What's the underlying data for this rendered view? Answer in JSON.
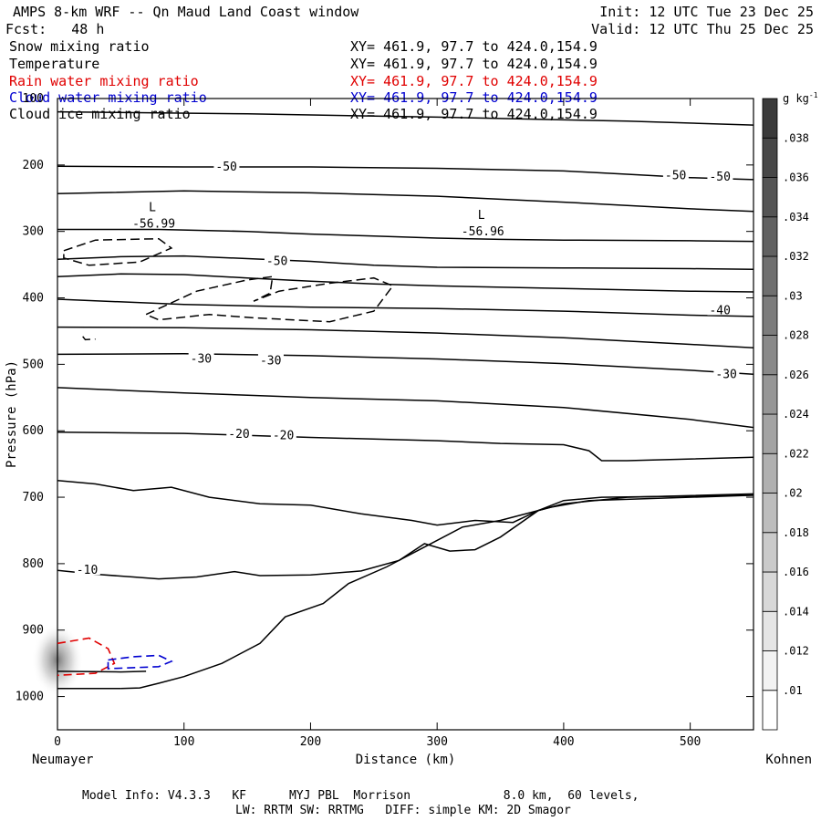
{
  "header": {
    "title": "AMPS 8-km WRF -- Qn Maud Land Coast window",
    "forecast": "Fcst:   48 h",
    "init": "Init: 12 UTC Tue 23 Dec 25",
    "valid": "Valid: 12 UTC Thu 25 Dec 25"
  },
  "fields": [
    {
      "name": "Snow mixing ratio",
      "xy": "XY= 461.9, 97.7 to 424.0,154.9",
      "color": "#000000"
    },
    {
      "name": "Temperature",
      "xy": "XY= 461.9, 97.7 to 424.0,154.9",
      "color": "#000000"
    },
    {
      "name": "Rain water mixing ratio",
      "xy": "XY= 461.9, 97.7 to 424.0,154.9",
      "color": "#e00000"
    },
    {
      "name": "Cloud water mixing ratio",
      "xy": "XY= 461.9, 97.7 to 424.0,154.9",
      "color": "#0000d0"
    },
    {
      "name": "Cloud ice mixing ratio",
      "xy": "XY= 461.9, 97.7 to 424.0,154.9",
      "color": "#000000"
    }
  ],
  "footer": {
    "line1": "Model Info: V4.3.3   KF      MYJ PBL  Morrison             8.0 km,  60 levels,",
    "line2": "LW: RRTM SW: RRTMG   DIFF: simple KM: 2D Smagor"
  },
  "chart_data": {
    "type": "contour",
    "xlabel": "Distance (km)",
    "ylabel": "Pressure (hPa)",
    "x_left_label": "Neumayer",
    "x_right_label": "Kohnen",
    "xlim": [
      0,
      550
    ],
    "ylim": [
      1050,
      100
    ],
    "xticks": [
      0,
      100,
      200,
      300,
      400,
      500
    ],
    "yticks": [
      100,
      200,
      300,
      400,
      500,
      600,
      700,
      800,
      900,
      1000
    ],
    "colorbar": {
      "unit": "g kg",
      "unit_exp": "-1",
      "levels": [
        ".01",
        ".012",
        ".014",
        ".016",
        ".018",
        ".02",
        ".022",
        ".024",
        ".026",
        ".028",
        ".03",
        ".032",
        ".034",
        ".036",
        ".038"
      ]
    },
    "temperature_labels": [
      "-50",
      "-50",
      "-50",
      "-50",
      "-40",
      "-30",
      "-30",
      "-30",
      "-20",
      "-20",
      "-10"
    ],
    "lows": [
      {
        "symbol": "L",
        "value": "-56.99"
      },
      {
        "symbol": "L",
        "value": "-56.96"
      }
    ],
    "temperature_contours": [
      {
        "points": [
          [
            0,
            120
          ],
          [
            150,
            123
          ],
          [
            300,
            128
          ],
          [
            450,
            134
          ],
          [
            550,
            140
          ]
        ]
      },
      {
        "points": [
          [
            0,
            202
          ],
          [
            100,
            203
          ],
          [
            200,
            203
          ],
          [
            300,
            205
          ],
          [
            400,
            209
          ],
          [
            450,
            214
          ],
          [
            500,
            219
          ],
          [
            550,
            222
          ]
        ]
      },
      {
        "points": [
          [
            0,
            243
          ],
          [
            100,
            239
          ],
          [
            200,
            242
          ],
          [
            300,
            247
          ],
          [
            400,
            256
          ],
          [
            500,
            266
          ],
          [
            550,
            270
          ]
        ]
      },
      {
        "points": [
          [
            0,
            297
          ],
          [
            80,
            297
          ],
          [
            150,
            300
          ],
          [
            200,
            304
          ],
          [
            250,
            307
          ],
          [
            300,
            310
          ],
          [
            350,
            312
          ],
          [
            400,
            313
          ],
          [
            500,
            314
          ],
          [
            550,
            315
          ]
        ]
      },
      {
        "points": [
          [
            0,
            342
          ],
          [
            50,
            338
          ],
          [
            100,
            337
          ],
          [
            150,
            341
          ],
          [
            200,
            345
          ],
          [
            250,
            351
          ],
          [
            300,
            354
          ],
          [
            400,
            355
          ],
          [
            500,
            356
          ],
          [
            550,
            357
          ]
        ]
      },
      {
        "points": [
          [
            0,
            368
          ],
          [
            50,
            364
          ],
          [
            100,
            365
          ],
          [
            150,
            370
          ],
          [
            200,
            375
          ],
          [
            250,
            379
          ],
          [
            300,
            382
          ],
          [
            400,
            386
          ],
          [
            500,
            390
          ],
          [
            550,
            391
          ]
        ]
      },
      {
        "points": [
          [
            0,
            402
          ],
          [
            100,
            410
          ],
          [
            200,
            414
          ],
          [
            300,
            416
          ],
          [
            400,
            420
          ],
          [
            500,
            426
          ],
          [
            550,
            428
          ]
        ]
      },
      {
        "points": [
          [
            0,
            444
          ],
          [
            100,
            445
          ],
          [
            200,
            448
          ],
          [
            300,
            453
          ],
          [
            400,
            460
          ],
          [
            500,
            470
          ],
          [
            550,
            475
          ]
        ]
      },
      {
        "points": [
          [
            0,
            485
          ],
          [
            100,
            484
          ],
          [
            200,
            487
          ],
          [
            300,
            492
          ],
          [
            400,
            499
          ],
          [
            500,
            509
          ],
          [
            550,
            515
          ]
        ]
      },
      {
        "points": [
          [
            0,
            535
          ],
          [
            100,
            543
          ],
          [
            200,
            550
          ],
          [
            300,
            555
          ],
          [
            400,
            565
          ],
          [
            500,
            583
          ],
          [
            550,
            595
          ]
        ]
      },
      {
        "points": [
          [
            0,
            602
          ],
          [
            100,
            604
          ],
          [
            200,
            610
          ],
          [
            300,
            615
          ],
          [
            350,
            619
          ],
          [
            400,
            621
          ],
          [
            420,
            630
          ],
          [
            430,
            645
          ],
          [
            450,
            645
          ],
          [
            550,
            640
          ]
        ]
      },
      {
        "points": [
          [
            0,
            675
          ],
          [
            30,
            680
          ],
          [
            60,
            690
          ],
          [
            90,
            685
          ],
          [
            120,
            700
          ],
          [
            160,
            710
          ],
          [
            200,
            712
          ],
          [
            240,
            725
          ],
          [
            280,
            735
          ],
          [
            300,
            742
          ],
          [
            330,
            735
          ],
          [
            360,
            738
          ],
          [
            380,
            720
          ],
          [
            400,
            705
          ],
          [
            430,
            700
          ],
          [
            550,
            697
          ]
        ]
      },
      {
        "points": [
          [
            0,
            810
          ],
          [
            30,
            816
          ],
          [
            60,
            820
          ],
          [
            80,
            823
          ],
          [
            110,
            820
          ],
          [
            140,
            812
          ],
          [
            160,
            818
          ],
          [
            200,
            817
          ],
          [
            240,
            811
          ],
          [
            270,
            795
          ],
          [
            290,
            770
          ],
          [
            310,
            781
          ],
          [
            330,
            779
          ],
          [
            350,
            760
          ],
          [
            380,
            720
          ],
          [
            400,
            710
          ],
          [
            450,
            700
          ],
          [
            550,
            695
          ]
        ]
      },
      {
        "points": [
          [
            50,
            988
          ],
          [
            65,
            987
          ],
          [
            80,
            980
          ],
          [
            100,
            970
          ],
          [
            130,
            950
          ],
          [
            160,
            920
          ],
          [
            180,
            880
          ],
          [
            210,
            860
          ],
          [
            230,
            830
          ],
          [
            260,
            805
          ],
          [
            290,
            775
          ],
          [
            320,
            745
          ],
          [
            350,
            735
          ],
          [
            390,
            715
          ],
          [
            420,
            705
          ],
          [
            550,
            697
          ]
        ]
      },
      {
        "points": [
          [
            0,
            962
          ],
          [
            50,
            963
          ],
          [
            70,
            962
          ]
        ]
      },
      {
        "points": [
          [
            0,
            988
          ],
          [
            50,
            988
          ]
        ]
      }
    ],
    "snow_contours": [
      {
        "points": [
          [
            5,
            329
          ],
          [
            30,
            313
          ],
          [
            80,
            311
          ],
          [
            90,
            325
          ],
          [
            65,
            346
          ],
          [
            25,
            351
          ],
          [
            5,
            340
          ],
          [
            5,
            329
          ]
        ]
      },
      {
        "points": [
          [
            70,
            425
          ],
          [
            110,
            390
          ],
          [
            150,
            373
          ],
          [
            170,
            368
          ],
          [
            168,
            393
          ],
          [
            155,
            405
          ],
          [
            175,
            390
          ],
          [
            215,
            378
          ],
          [
            250,
            370
          ],
          [
            265,
            382
          ],
          [
            250,
            420
          ],
          [
            215,
            436
          ],
          [
            155,
            430
          ],
          [
            120,
            425
          ],
          [
            80,
            433
          ],
          [
            70,
            425
          ]
        ]
      },
      {
        "points": [
          [
            20,
            458
          ],
          [
            22,
            463
          ],
          [
            30,
            462
          ]
        ]
      }
    ],
    "rain_contours": [
      {
        "points": [
          [
            0,
            920
          ],
          [
            25,
            912
          ],
          [
            40,
            928
          ],
          [
            45,
            950
          ],
          [
            30,
            965
          ],
          [
            0,
            968
          ]
        ]
      }
    ],
    "cloud_water_contours": [
      {
        "points": [
          [
            40,
            945
          ],
          [
            60,
            940
          ],
          [
            80,
            938
          ],
          [
            90,
            947
          ],
          [
            80,
            955
          ],
          [
            40,
            958
          ],
          [
            40,
            945
          ]
        ]
      }
    ]
  }
}
